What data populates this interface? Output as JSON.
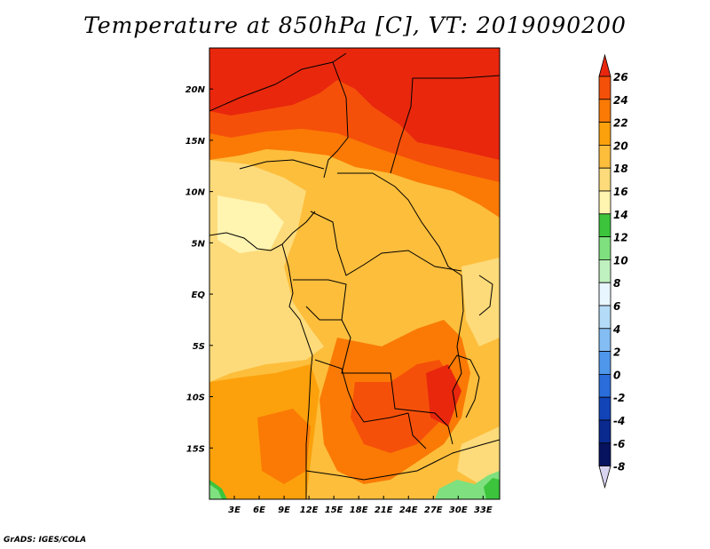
{
  "title": "Temperature at 850hPa [C], VT: 2019090200",
  "credit": "GrADS: IGES/COLA",
  "map": {
    "projection": "latlon",
    "lon_range": [
      0,
      35
    ],
    "lat_range": [
      -20,
      24
    ],
    "x_ticks": [
      "3E",
      "6E",
      "9E",
      "12E",
      "15E",
      "18E",
      "21E",
      "24E",
      "27E",
      "30E",
      "33E"
    ],
    "y_ticks": [
      "20N",
      "15N",
      "10N",
      "5N",
      "EQ",
      "5S",
      "10S",
      "15S"
    ]
  },
  "colorbar": {
    "levels": [
      "26",
      "24",
      "22",
      "20",
      "18",
      "16",
      "14",
      "12",
      "10",
      "8",
      "6",
      "4",
      "2",
      "0",
      "-2",
      "-4",
      "-6",
      "-8"
    ],
    "colors": [
      "#e8270d",
      "#f5500a",
      "#fa7a05",
      "#fca10c",
      "#fdbe3c",
      "#fddb7a",
      "#fff4b0",
      "#3cc43c",
      "#7ee07e",
      "#bff0bf",
      "#e8f6ff",
      "#b4dcf8",
      "#84bdf3",
      "#4f97ea",
      "#2a6ddb",
      "#1244b8",
      "#0a2a8f",
      "#07135f",
      "#d8d4f0"
    ]
  }
}
